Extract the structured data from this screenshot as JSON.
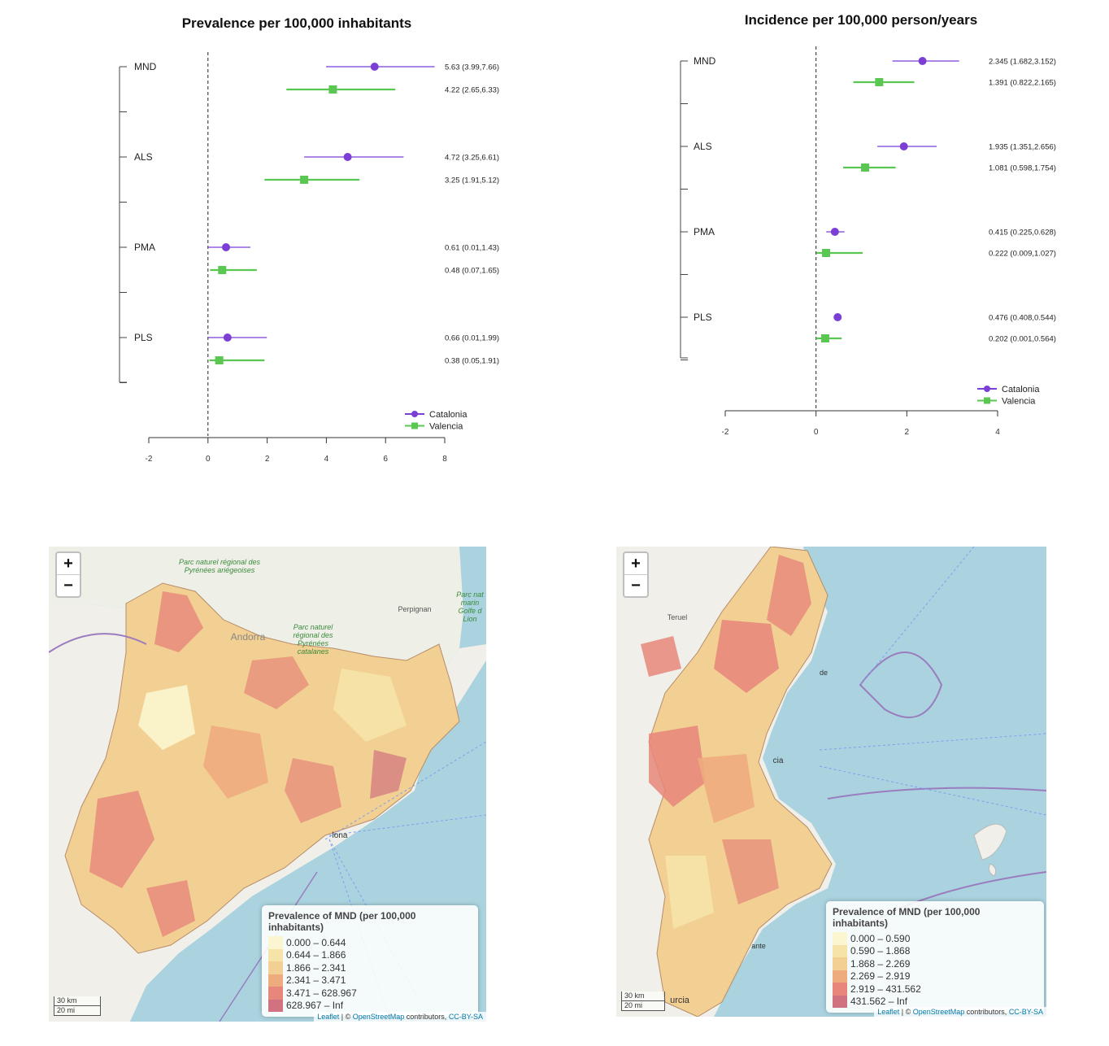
{
  "forest_plots": [
    {
      "title": "Prevalence per 100,000 inhabitants",
      "xticks": [
        "-2",
        "0",
        "2",
        "4",
        "6",
        "8"
      ],
      "xlim": [
        -2,
        8
      ],
      "groups": [
        "MND",
        "ALS",
        "PMA",
        "PLS"
      ],
      "legend": [
        "Catalonia",
        "Valencia"
      ]
    },
    {
      "title": "Incidence per 100,000 person/years",
      "xticks": [
        "-2",
        "0",
        "2",
        "4"
      ],
      "xlim": [
        -2,
        4
      ],
      "groups": [
        "MND",
        "ALS",
        "PMA",
        "PLS"
      ],
      "legend": [
        "Catalonia",
        "Valencia"
      ]
    }
  ],
  "chart_data": [
    {
      "type": "forest",
      "title": "Prevalence per 100,000 inhabitants",
      "xlim": [
        -2,
        8
      ],
      "reference_line": 0,
      "series": [
        {
          "name": "Catalonia",
          "color": "#7b3fd6",
          "marker": "circle",
          "points": [
            {
              "group": "MND",
              "est": 5.63,
              "lo": 3.99,
              "hi": 7.66,
              "label": "5.63 (3.99,7.66)"
            },
            {
              "group": "ALS",
              "est": 4.72,
              "lo": 3.25,
              "hi": 6.61,
              "label": "4.72 (3.25,6.61)"
            },
            {
              "group": "PMA",
              "est": 0.61,
              "lo": 0.01,
              "hi": 1.43,
              "label": "0.61 (0.01,1.43)"
            },
            {
              "group": "PLS",
              "est": 0.66,
              "lo": 0.01,
              "hi": 1.99,
              "label": "0.66 (0.01,1.99)"
            }
          ]
        },
        {
          "name": "Valencia",
          "color": "#5ac752",
          "marker": "square",
          "points": [
            {
              "group": "MND",
              "est": 4.22,
              "lo": 2.65,
              "hi": 6.33,
              "label": "4.22 (2.65,6.33)"
            },
            {
              "group": "ALS",
              "est": 3.25,
              "lo": 1.91,
              "hi": 5.12,
              "label": "3.25 (1.91,5.12)"
            },
            {
              "group": "PMA",
              "est": 0.48,
              "lo": 0.07,
              "hi": 1.65,
              "label": "0.48 (0.07,1.65)"
            },
            {
              "group": "PLS",
              "est": 0.38,
              "lo": 0.05,
              "hi": 1.91,
              "label": "0.38 (0.05,1.91)"
            }
          ]
        }
      ]
    },
    {
      "type": "forest",
      "title": "Incidence per 100,000 person/years",
      "xlim": [
        -2,
        4
      ],
      "reference_line": 0,
      "series": [
        {
          "name": "Catalonia",
          "color": "#7b3fd6",
          "marker": "circle",
          "points": [
            {
              "group": "MND",
              "est": 2.345,
              "lo": 1.682,
              "hi": 3.152,
              "label": "2.345 (1.682,3.152)"
            },
            {
              "group": "ALS",
              "est": 1.935,
              "lo": 1.351,
              "hi": 2.656,
              "label": "1.935 (1.351,2.656)"
            },
            {
              "group": "PMA",
              "est": 0.415,
              "lo": 0.225,
              "hi": 0.628,
              "label": "0.415 (0.225,0.628)"
            },
            {
              "group": "PLS",
              "est": 0.476,
              "lo": 0.408,
              "hi": 0.544,
              "label": "0.476 (0.408,0.544)"
            }
          ]
        },
        {
          "name": "Valencia",
          "color": "#5ac752",
          "marker": "square",
          "points": [
            {
              "group": "MND",
              "est": 1.391,
              "lo": 0.822,
              "hi": 2.165,
              "label": "1.391 (0.822,2.165)"
            },
            {
              "group": "ALS",
              "est": 1.081,
              "lo": 0.598,
              "hi": 1.754,
              "label": "1.081 (0.598,1.754)"
            },
            {
              "group": "PMA",
              "est": 0.222,
              "lo": 0.009,
              "hi": 1.027,
              "label": "0.222 (0.009,1.027)"
            },
            {
              "group": "PLS",
              "est": 0.202,
              "lo": 0.001,
              "hi": 0.564,
              "label": "0.202 (0.001,0.564)"
            }
          ]
        }
      ]
    }
  ],
  "maps": [
    {
      "region": "Catalonia",
      "zoom_in": "+",
      "zoom_out": "−",
      "place_labels": [
        "Parc naturel régional des Pyrénées ariégeoises",
        "Andorra",
        "Parc naturel régional des Pyrénées catalanes",
        "Perpignan",
        "Parc nat marin Golfe d Lion",
        "lona"
      ],
      "legend_title": "Prevalence of MND (per 100,000 inhabitants)",
      "legend_rows": [
        {
          "label": "0.000 – 0.644",
          "color": "#fbf6cf"
        },
        {
          "label": "0.644 – 1.866",
          "color": "#f6e3a8"
        },
        {
          "label": "1.866 – 2.341",
          "color": "#f2cf92"
        },
        {
          "label": "2.341 – 3.471",
          "color": "#eeab7e"
        },
        {
          "label": "3.471 – 628.967",
          "color": "#e7867a"
        },
        {
          "label": "628.967 – Inf",
          "color": "#d0727f"
        }
      ],
      "scale_km": "30 km",
      "scale_mi": "20 mi",
      "attribution_leaflet": "Leaflet",
      "attribution_mid": " | © ",
      "attribution_osm": "OpenStreetMap",
      "attribution_contrib": " contributors, ",
      "attribution_cc": "CC-BY-SA"
    },
    {
      "region": "Valencia",
      "zoom_in": "+",
      "zoom_out": "−",
      "place_labels": [
        "Teruel",
        "de",
        "cia",
        "ante",
        "urcia"
      ],
      "legend_title": "Prevalence of MND (per 100,000 inhabitants)",
      "legend_rows": [
        {
          "label": "0.000 – 0.590",
          "color": "#fbf6cf"
        },
        {
          "label": "0.590 – 1.868",
          "color": "#f6e3a8"
        },
        {
          "label": "1.868 – 2.269",
          "color": "#f2cf92"
        },
        {
          "label": "2.269 – 2.919",
          "color": "#eeab7e"
        },
        {
          "label": "2.919 – 431.562",
          "color": "#e7867a"
        },
        {
          "label": "431.562 – Inf",
          "color": "#d0727f"
        }
      ],
      "scale_km": "30 km",
      "scale_mi": "20 mi",
      "attribution_leaflet": "Leaflet",
      "attribution_mid": " | © ",
      "attribution_osm": "OpenStreetMap",
      "attribution_contrib": " contributors, ",
      "attribution_cc": "CC-BY-SA"
    }
  ]
}
